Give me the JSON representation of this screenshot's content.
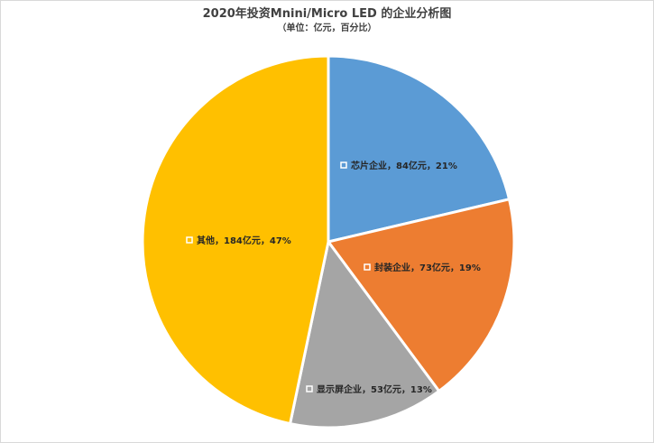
{
  "chart_data": {
    "type": "pie",
    "title": "2020年投资Mnini/Micro LED 的企业分析图",
    "subtitle": "（单位：亿元，百分比）",
    "slices": [
      {
        "name": "芯片企业",
        "value": 84,
        "percent": 21,
        "label": "芯片企业，84亿元，21%",
        "color": "#5B9BD5"
      },
      {
        "name": "封装企业",
        "value": 73,
        "percent": 19,
        "label": "封装企业，73亿元，19%",
        "color": "#ED7D31"
      },
      {
        "name": "显示屏企业",
        "value": 53,
        "percent": 13,
        "label": "显示屏企业，53亿元，13%",
        "color": "#A5A5A5"
      },
      {
        "name": "其他",
        "value": 184,
        "percent": 47,
        "label": "其他，184亿元，47%",
        "color": "#FFC000"
      }
    ]
  }
}
